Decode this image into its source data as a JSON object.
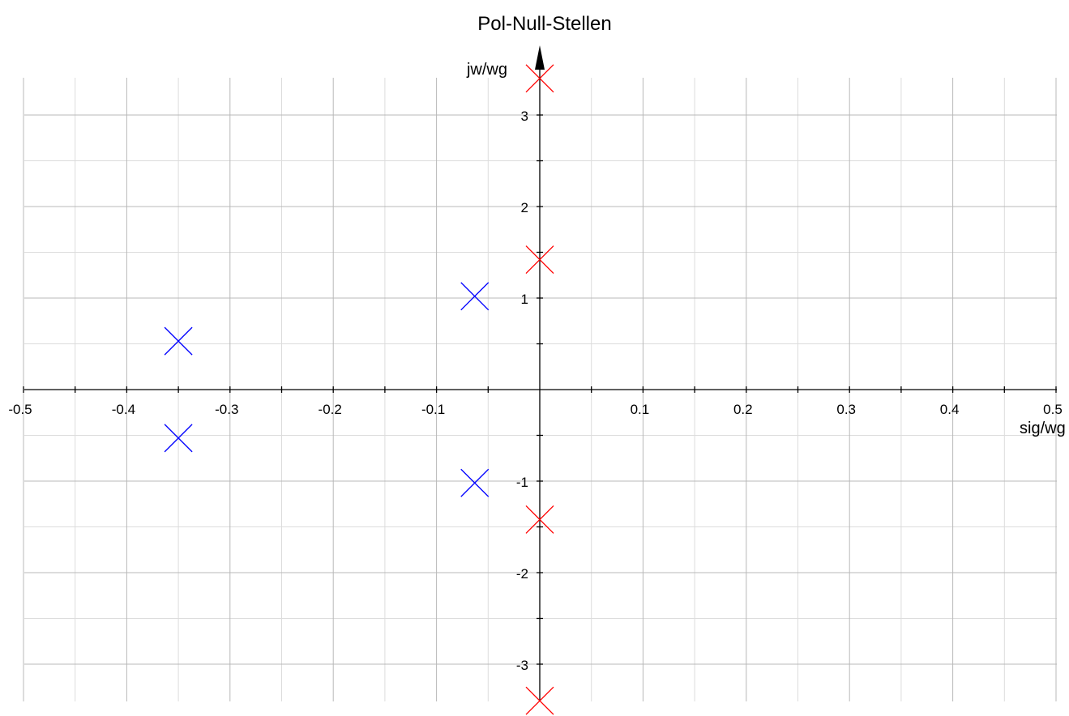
{
  "chart_data": {
    "type": "scatter",
    "title": "Pol-Null-Stellen",
    "xlabel": "sig/wg",
    "ylabel": "jw/wg",
    "xlim": [
      -0.5,
      0.5
    ],
    "ylim": [
      -3.5,
      3.5
    ],
    "grid": true,
    "x_ticks": [
      -0.5,
      -0.4,
      -0.3,
      -0.2,
      -0.1,
      0.1,
      0.2,
      0.3,
      0.4,
      0.5
    ],
    "x_tick_labels": [
      "-0.5",
      "-0.4",
      "-0.3",
      "-0.2",
      "-0.1",
      "0.1",
      "0.2",
      "0.3",
      "0.4",
      "0.5"
    ],
    "y_ticks": [
      -3,
      -2,
      -1,
      1,
      2,
      3
    ],
    "y_tick_labels": [
      "-3",
      "-2",
      "-1",
      "1",
      "2",
      "3"
    ],
    "series": [
      {
        "marker": "x",
        "color": "#0000ff",
        "points": [
          {
            "x": -0.35,
            "y": 0.53
          },
          {
            "x": -0.35,
            "y": -0.53
          },
          {
            "x": -0.063,
            "y": 1.02
          },
          {
            "x": -0.063,
            "y": -1.02
          }
        ]
      },
      {
        "marker": "x",
        "color": "#ff0000",
        "points": [
          {
            "x": 0.0,
            "y": 3.4
          },
          {
            "x": 0.0,
            "y": 1.42
          },
          {
            "x": 0.0,
            "y": -1.42
          },
          {
            "x": 0.0,
            "y": -3.4
          }
        ]
      }
    ]
  }
}
